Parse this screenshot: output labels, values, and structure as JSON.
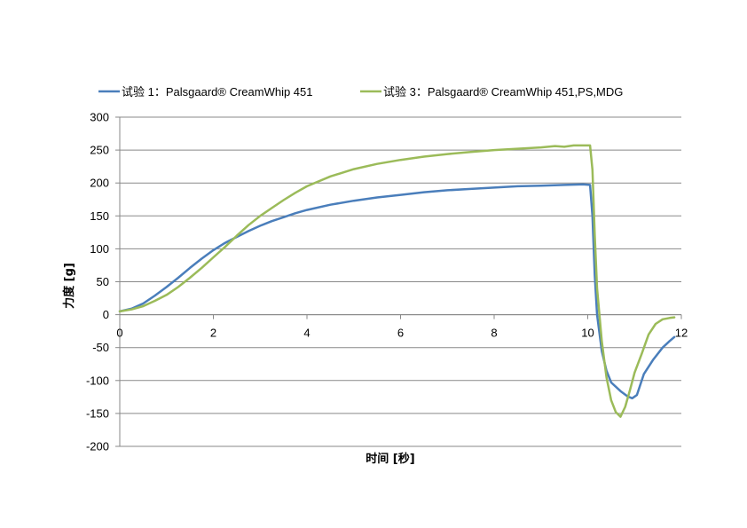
{
  "chart_data": {
    "type": "line",
    "xlabel": "时间 [秒]",
    "ylabel": "力度 [g]",
    "xlim": [
      0,
      12
    ],
    "ylim": [
      -200,
      300
    ],
    "xticks": [
      0,
      2,
      4,
      6,
      8,
      10,
      12
    ],
    "yticks": [
      -200,
      -150,
      -100,
      -50,
      0,
      50,
      100,
      150,
      200,
      250,
      300
    ],
    "grid": "horizontal",
    "legend_position": "top",
    "series": [
      {
        "name": "试验 1：Palsgaard® CreamWhip 451",
        "color": "#4a7ebb",
        "points": [
          [
            0,
            5
          ],
          [
            0.25,
            9
          ],
          [
            0.5,
            17
          ],
          [
            0.75,
            29
          ],
          [
            1,
            42
          ],
          [
            1.25,
            56
          ],
          [
            1.5,
            71
          ],
          [
            1.75,
            85
          ],
          [
            2,
            98
          ],
          [
            2.25,
            109
          ],
          [
            2.5,
            118
          ],
          [
            2.75,
            127
          ],
          [
            3,
            135
          ],
          [
            3.25,
            142
          ],
          [
            3.5,
            148
          ],
          [
            3.75,
            154
          ],
          [
            4,
            159
          ],
          [
            4.5,
            167
          ],
          [
            5,
            173
          ],
          [
            5.5,
            178
          ],
          [
            6,
            182
          ],
          [
            6.5,
            186
          ],
          [
            7,
            189
          ],
          [
            7.5,
            191
          ],
          [
            8,
            193
          ],
          [
            8.5,
            195
          ],
          [
            9,
            196
          ],
          [
            9.5,
            197
          ],
          [
            9.9,
            198
          ],
          [
            10.05,
            197
          ],
          [
            10.1,
            150
          ],
          [
            10.15,
            60
          ],
          [
            10.2,
            0
          ],
          [
            10.3,
            -55
          ],
          [
            10.4,
            -85
          ],
          [
            10.5,
            -103
          ],
          [
            10.7,
            -116
          ],
          [
            10.85,
            -124
          ],
          [
            10.95,
            -127
          ],
          [
            11.05,
            -122
          ],
          [
            11.2,
            -90
          ],
          [
            11.4,
            -68
          ],
          [
            11.6,
            -50
          ],
          [
            11.75,
            -40
          ],
          [
            11.85,
            -34
          ]
        ]
      },
      {
        "name": "试验 3：Palsgaard® CreamWhip 451,PS,MDG",
        "color": "#9bbb59",
        "points": [
          [
            0,
            5
          ],
          [
            0.25,
            8
          ],
          [
            0.5,
            13
          ],
          [
            0.75,
            21
          ],
          [
            1,
            30
          ],
          [
            1.25,
            42
          ],
          [
            1.5,
            56
          ],
          [
            1.75,
            71
          ],
          [
            2,
            87
          ],
          [
            2.25,
            103
          ],
          [
            2.5,
            120
          ],
          [
            2.75,
            136
          ],
          [
            3,
            150
          ],
          [
            3.25,
            162
          ],
          [
            3.5,
            174
          ],
          [
            3.75,
            185
          ],
          [
            4,
            195
          ],
          [
            4.5,
            210
          ],
          [
            5,
            221
          ],
          [
            5.5,
            229
          ],
          [
            6,
            235
          ],
          [
            6.5,
            240
          ],
          [
            7,
            244
          ],
          [
            7.5,
            247
          ],
          [
            8,
            250
          ],
          [
            8.5,
            252
          ],
          [
            9,
            254
          ],
          [
            9.3,
            256
          ],
          [
            9.5,
            255
          ],
          [
            9.7,
            257
          ],
          [
            10.05,
            257
          ],
          [
            10.1,
            220
          ],
          [
            10.15,
            120
          ],
          [
            10.2,
            40
          ],
          [
            10.3,
            -40
          ],
          [
            10.4,
            -95
          ],
          [
            10.5,
            -130
          ],
          [
            10.6,
            -148
          ],
          [
            10.7,
            -155
          ],
          [
            10.8,
            -140
          ],
          [
            10.9,
            -115
          ],
          [
            11,
            -88
          ],
          [
            11.15,
            -60
          ],
          [
            11.3,
            -30
          ],
          [
            11.45,
            -14
          ],
          [
            11.6,
            -7
          ],
          [
            11.75,
            -5
          ],
          [
            11.85,
            -4
          ]
        ]
      }
    ]
  }
}
